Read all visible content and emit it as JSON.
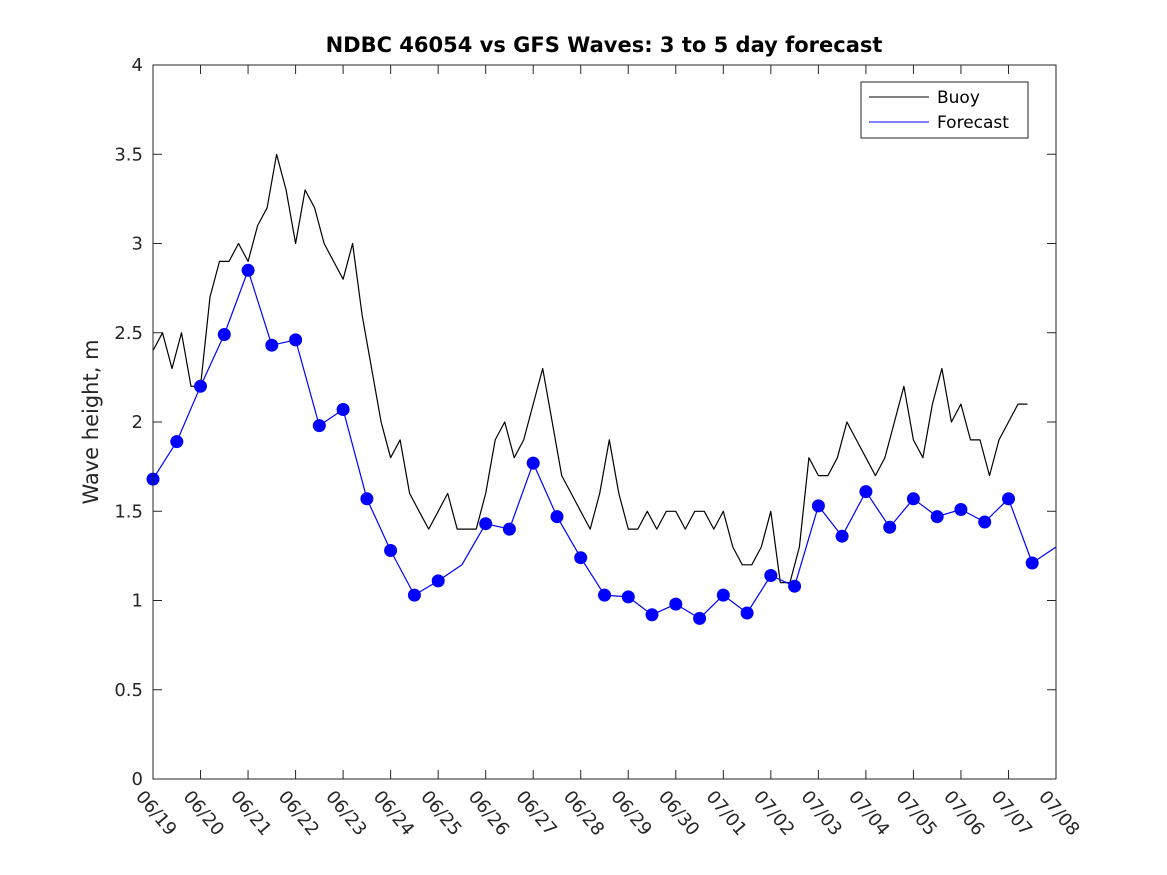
{
  "chart_data": {
    "type": "line",
    "title": "NDBC 46054 vs GFS Waves: 3 to 5 day forecast",
    "xlabel": "",
    "ylabel": "Wave height, m",
    "xlim": [
      "06/19",
      "07/08"
    ],
    "ylim": [
      0,
      4
    ],
    "yticks": [
      0,
      0.5,
      1,
      1.5,
      2,
      2.5,
      3,
      3.5,
      4
    ],
    "ytick_labels": [
      "0",
      "0.5",
      "1",
      "1.5",
      "2",
      "2.5",
      "3",
      "3.5",
      "4"
    ],
    "xtick_labels": [
      "06/19",
      "06/20",
      "06/21",
      "06/22",
      "06/23",
      "06/24",
      "06/25",
      "06/26",
      "06/27",
      "06/28",
      "06/29",
      "06/30",
      "07/01",
      "07/02",
      "07/03",
      "07/04",
      "07/05",
      "07/06",
      "07/07",
      "07/08"
    ],
    "grid": false,
    "legend": {
      "position": "top-right",
      "entries": [
        {
          "name": "Buoy",
          "color": "#000000"
        },
        {
          "name": "Forecast",
          "color": "#0000ff"
        }
      ]
    },
    "series": [
      {
        "name": "Buoy",
        "color": "#000000",
        "x_day": [
          0,
          0.2,
          0.4,
          0.6,
          0.8,
          1.0,
          1.2,
          1.4,
          1.6,
          1.8,
          2.0,
          2.2,
          2.4,
          2.6,
          2.8,
          3.0,
          3.2,
          3.4,
          3.6,
          3.8,
          4.0,
          4.2,
          4.4,
          4.6,
          4.8,
          5.0,
          5.2,
          5.4,
          5.6,
          5.8,
          6.0,
          6.2,
          6.4,
          6.6,
          6.8,
          7.0,
          7.2,
          7.4,
          7.6,
          7.8,
          8.0,
          8.2,
          8.4,
          8.6,
          8.8,
          9.0,
          9.2,
          9.4,
          9.6,
          9.8,
          10.0,
          10.2,
          10.4,
          10.6,
          10.8,
          11.0,
          11.2,
          11.4,
          11.6,
          11.8,
          12.0,
          12.2,
          12.4,
          12.6,
          12.8,
          13.0,
          13.2,
          13.4,
          13.6,
          13.8,
          14.0,
          14.2,
          14.4,
          14.6,
          14.8,
          15.0,
          15.2,
          15.4,
          15.6,
          15.8,
          16.0,
          16.2,
          16.4,
          16.6,
          16.8,
          17.0,
          17.2,
          17.4,
          17.6,
          17.8,
          18.0,
          18.2,
          18.4
        ],
        "y": [
          2.4,
          2.5,
          2.3,
          2.5,
          2.2,
          2.2,
          2.7,
          2.9,
          2.9,
          3.0,
          2.9,
          3.1,
          3.2,
          3.5,
          3.3,
          3.0,
          3.3,
          3.2,
          3.0,
          2.9,
          2.8,
          3.0,
          2.6,
          2.3,
          2.0,
          1.8,
          1.9,
          1.6,
          1.5,
          1.4,
          1.5,
          1.6,
          1.4,
          1.4,
          1.4,
          1.6,
          1.9,
          2.0,
          1.8,
          1.9,
          2.1,
          2.3,
          2.0,
          1.7,
          1.6,
          1.5,
          1.4,
          1.6,
          1.9,
          1.6,
          1.4,
          1.4,
          1.5,
          1.4,
          1.5,
          1.5,
          1.4,
          1.5,
          1.5,
          1.4,
          1.5,
          1.3,
          1.2,
          1.2,
          1.3,
          1.5,
          1.1,
          1.1,
          1.3,
          1.8,
          1.7,
          1.7,
          1.8,
          2.0,
          1.9,
          1.8,
          1.7,
          1.8,
          2.0,
          2.2,
          1.9,
          1.8,
          2.1,
          2.3,
          2.0,
          2.1,
          1.9,
          1.9,
          1.7,
          1.9,
          2.0,
          2.1,
          2.1
        ]
      },
      {
        "name": "Forecast",
        "color": "#0000ff",
        "x_day": [
          0,
          0.5,
          1.0,
          1.5,
          2.0,
          2.5,
          3.0,
          3.5,
          4.0,
          4.5,
          5.0,
          5.5,
          6.0,
          6.5,
          7.0,
          7.5,
          8.0,
          8.5,
          9.0,
          9.5,
          10.0,
          10.5,
          11.0,
          11.5,
          12.0,
          12.5,
          13.0,
          13.5,
          14.0,
          14.5,
          15.0,
          15.5,
          16.0,
          16.5,
          17.0,
          17.5,
          18.0,
          18.5,
          19.0
        ],
        "y": [
          1.68,
          1.89,
          2.2,
          2.49,
          2.85,
          2.43,
          2.46,
          1.98,
          2.07,
          1.57,
          1.28,
          1.03,
          1.11,
          1.2,
          1.43,
          1.4,
          1.77,
          1.47,
          1.24,
          1.03,
          1.02,
          0.92,
          0.98,
          0.9,
          1.03,
          0.93,
          1.14,
          1.08,
          1.53,
          1.36,
          1.61,
          1.41,
          1.57,
          1.47,
          1.51,
          1.44,
          1.57,
          1.21,
          1.3
        ]
      }
    ],
    "forecast_markers": {
      "x_day": [
        0,
        0.5,
        1.0,
        1.5,
        2.0,
        2.5,
        3.0,
        3.5,
        4.0,
        4.5,
        5.0,
        5.5,
        6.0,
        7.0,
        7.5,
        8.0,
        8.5,
        9.0,
        9.5,
        10.0,
        10.5,
        11.0,
        11.5,
        12.0,
        12.5,
        13.0,
        13.5,
        14.0,
        14.5,
        15.0,
        15.5,
        16.0,
        16.5,
        17.0,
        17.5,
        18.0,
        18.5
      ],
      "y": [
        1.68,
        1.89,
        2.2,
        2.49,
        2.85,
        2.43,
        2.46,
        1.98,
        2.07,
        1.57,
        1.28,
        1.03,
        1.11,
        1.43,
        1.4,
        1.77,
        1.47,
        1.24,
        1.03,
        1.02,
        0.92,
        0.98,
        0.9,
        1.03,
        0.93,
        1.14,
        1.08,
        1.53,
        1.36,
        1.61,
        1.41,
        1.57,
        1.47,
        1.51,
        1.44,
        1.57,
        1.21
      ]
    }
  }
}
